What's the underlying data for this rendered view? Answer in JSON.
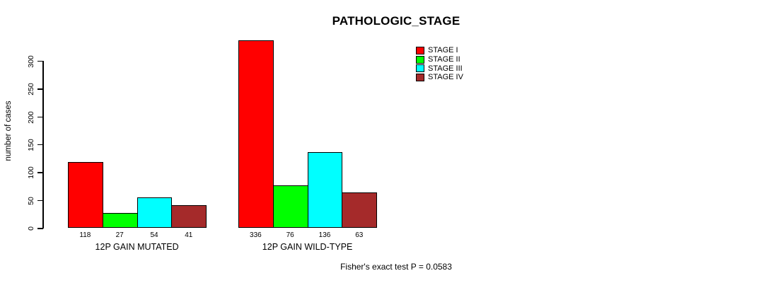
{
  "title": "PATHOLOGIC_STAGE",
  "y_axis": {
    "label": "number of cases",
    "ticks": [
      0,
      50,
      100,
      150,
      200,
      250,
      300
    ]
  },
  "legend": {
    "items": [
      {
        "label": "STAGE I",
        "color": "#FF0000"
      },
      {
        "label": "STAGE II",
        "color": "#00FF00"
      },
      {
        "label": "STAGE III",
        "color": "#00FFFF"
      },
      {
        "label": "STAGE IV",
        "color": "#A52A2A"
      }
    ]
  },
  "annotation": "Fisher's exact test P = 0.0583",
  "chart_data": {
    "type": "bar",
    "title": "PATHOLOGIC_STAGE",
    "xlabel": "",
    "ylabel": "number of cases",
    "ylim": [
      0,
      340
    ],
    "yticks": [
      0,
      50,
      100,
      150,
      200,
      250,
      300
    ],
    "grid": false,
    "legend_position": "top-right",
    "categories": [
      "12P GAIN MUTATED",
      "12P GAIN WILD-TYPE"
    ],
    "series": [
      {
        "name": "STAGE I",
        "color": "#FF0000",
        "values": [
          118,
          336
        ]
      },
      {
        "name": "STAGE II",
        "color": "#00FF00",
        "values": [
          27,
          76
        ]
      },
      {
        "name": "STAGE III",
        "color": "#00FFFF",
        "values": [
          54,
          136
        ]
      },
      {
        "name": "STAGE IV",
        "color": "#A52A2A",
        "values": [
          41,
          63
        ]
      }
    ],
    "bar_value_labels": [
      [
        118,
        27,
        54,
        41
      ],
      [
        336,
        76,
        136,
        63
      ]
    ],
    "annotation": "Fisher's exact test P = 0.0583"
  }
}
